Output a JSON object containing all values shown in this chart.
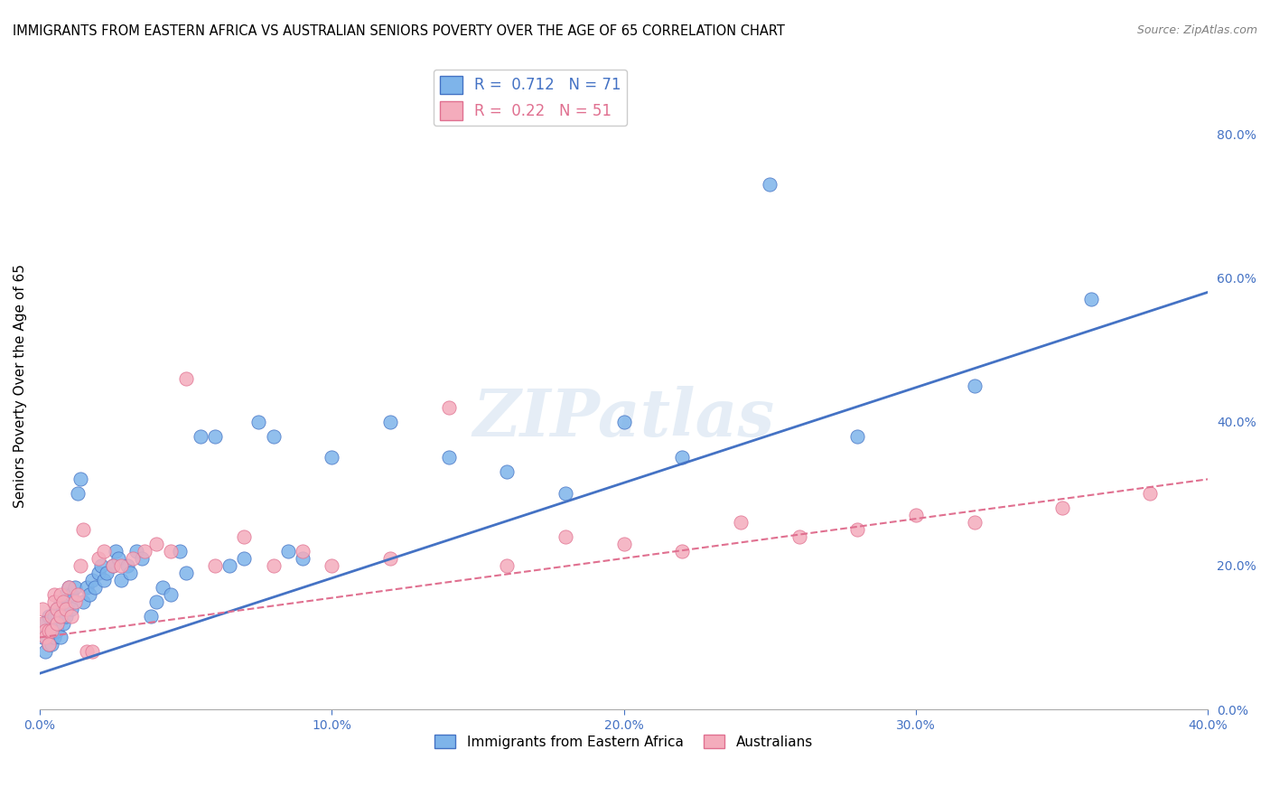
{
  "title": "IMMIGRANTS FROM EASTERN AFRICA VS AUSTRALIAN SENIORS POVERTY OVER THE AGE OF 65 CORRELATION CHART",
  "source": "Source: ZipAtlas.com",
  "xlabel_bottom": "",
  "ylabel": "Seniors Poverty Over the Age of 65",
  "x_label_bottom_left": "0.0%",
  "x_label_bottom_right": "40.0%",
  "y_right_ticks": [
    "0%",
    "20.0%",
    "40.0%",
    "60.0%",
    "80.0%"
  ],
  "blue_R": 0.712,
  "blue_N": 71,
  "pink_R": 0.22,
  "pink_N": 51,
  "blue_color": "#7EB4EA",
  "pink_color": "#F4ACBC",
  "blue_line_color": "#4472C4",
  "pink_line_color": "#E07090",
  "legend_label_blue": "Immigrants from Eastern Africa",
  "legend_label_pink": "Australians",
  "xlim": [
    0.0,
    0.4
  ],
  "ylim": [
    0.0,
    0.9
  ],
  "blue_scatter_x": [
    0.001,
    0.002,
    0.002,
    0.003,
    0.003,
    0.003,
    0.004,
    0.004,
    0.004,
    0.005,
    0.005,
    0.005,
    0.006,
    0.006,
    0.006,
    0.007,
    0.007,
    0.007,
    0.008,
    0.008,
    0.009,
    0.009,
    0.01,
    0.01,
    0.011,
    0.011,
    0.012,
    0.013,
    0.014,
    0.015,
    0.016,
    0.017,
    0.018,
    0.019,
    0.02,
    0.021,
    0.022,
    0.023,
    0.025,
    0.026,
    0.027,
    0.028,
    0.03,
    0.031,
    0.033,
    0.035,
    0.038,
    0.04,
    0.042,
    0.045,
    0.048,
    0.05,
    0.055,
    0.06,
    0.065,
    0.07,
    0.075,
    0.08,
    0.085,
    0.09,
    0.1,
    0.12,
    0.14,
    0.16,
    0.18,
    0.2,
    0.22,
    0.25,
    0.28,
    0.32,
    0.36
  ],
  "blue_scatter_y": [
    0.1,
    0.12,
    0.08,
    0.11,
    0.09,
    0.13,
    0.1,
    0.11,
    0.09,
    0.12,
    0.13,
    0.1,
    0.14,
    0.11,
    0.12,
    0.13,
    0.15,
    0.1,
    0.14,
    0.12,
    0.16,
    0.13,
    0.15,
    0.17,
    0.14,
    0.16,
    0.17,
    0.3,
    0.32,
    0.15,
    0.17,
    0.16,
    0.18,
    0.17,
    0.19,
    0.2,
    0.18,
    0.19,
    0.2,
    0.22,
    0.21,
    0.18,
    0.2,
    0.19,
    0.22,
    0.21,
    0.13,
    0.15,
    0.17,
    0.16,
    0.22,
    0.19,
    0.38,
    0.38,
    0.2,
    0.21,
    0.4,
    0.38,
    0.22,
    0.21,
    0.35,
    0.4,
    0.35,
    0.33,
    0.3,
    0.4,
    0.35,
    0.73,
    0.38,
    0.45,
    0.57
  ],
  "pink_scatter_x": [
    0.001,
    0.001,
    0.002,
    0.002,
    0.003,
    0.003,
    0.004,
    0.004,
    0.005,
    0.005,
    0.006,
    0.006,
    0.007,
    0.007,
    0.008,
    0.009,
    0.01,
    0.011,
    0.012,
    0.013,
    0.014,
    0.015,
    0.016,
    0.018,
    0.02,
    0.022,
    0.025,
    0.028,
    0.032,
    0.036,
    0.04,
    0.045,
    0.05,
    0.06,
    0.07,
    0.08,
    0.09,
    0.1,
    0.12,
    0.14,
    0.16,
    0.18,
    0.2,
    0.22,
    0.24,
    0.26,
    0.28,
    0.3,
    0.32,
    0.35,
    0.38
  ],
  "pink_scatter_y": [
    0.14,
    0.12,
    0.11,
    0.1,
    0.11,
    0.09,
    0.13,
    0.11,
    0.16,
    0.15,
    0.14,
    0.12,
    0.16,
    0.13,
    0.15,
    0.14,
    0.17,
    0.13,
    0.15,
    0.16,
    0.2,
    0.25,
    0.08,
    0.08,
    0.21,
    0.22,
    0.2,
    0.2,
    0.21,
    0.22,
    0.23,
    0.22,
    0.46,
    0.2,
    0.24,
    0.2,
    0.22,
    0.2,
    0.21,
    0.42,
    0.2,
    0.24,
    0.23,
    0.22,
    0.26,
    0.24,
    0.25,
    0.27,
    0.26,
    0.28,
    0.3
  ],
  "blue_trend_x": [
    0.0,
    0.4
  ],
  "blue_trend_y": [
    0.05,
    0.58
  ],
  "pink_trend_x": [
    0.0,
    0.4
  ],
  "pink_trend_y": [
    0.1,
    0.32
  ],
  "watermark": "ZIPatlas",
  "background_color": "#FFFFFF",
  "grid_color": "#DDDDDD"
}
